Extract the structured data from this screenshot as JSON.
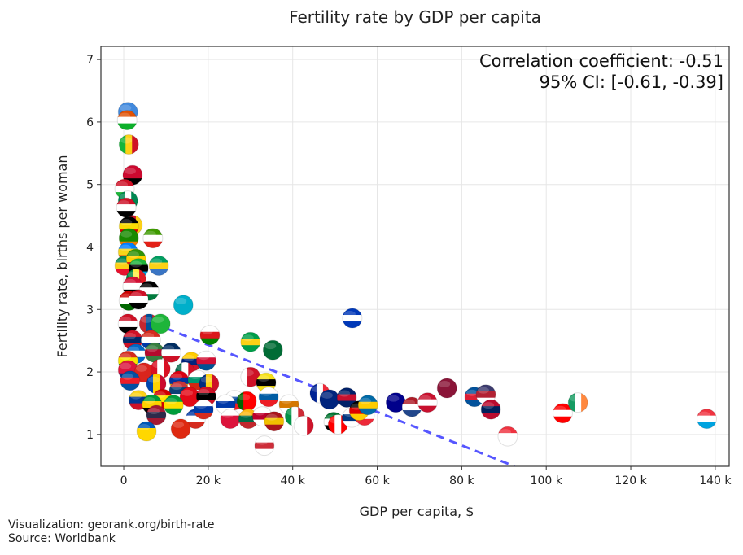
{
  "chart_data": {
    "type": "scatter",
    "title": "Fertility rate by GDP per capita",
    "xlabel": "GDP per capita, $",
    "ylabel": "Fertility rate, births per woman",
    "xlim": [
      -5.4,
      143.3
    ],
    "ylim": [
      0.49,
      7.21
    ],
    "x_unit": "thousand $",
    "xticks": [
      0,
      20,
      40,
      60,
      80,
      100,
      120,
      140
    ],
    "xtick_labels": [
      "0",
      "20 k",
      "40 k",
      "60 k",
      "80 k",
      "100 k",
      "120 k",
      "140 k"
    ],
    "yticks": [
      1,
      2,
      3,
      4,
      5,
      6,
      7
    ],
    "ytick_labels": [
      "1",
      "2",
      "3",
      "4",
      "5",
      "6",
      "7"
    ],
    "grid": true,
    "annotation": [
      "Correlation coefficient: -0.51",
      "95% CI: [-0.61, -0.39]"
    ],
    "trendline": {
      "x": [
        4,
        92.5
      ],
      "y": [
        2.86,
        0.49
      ],
      "color": "#4444ff",
      "style": "dashed"
    },
    "points": [
      {
        "c": "Somalia",
        "x": 1,
        "y": 6.16,
        "f": [
          "#4189dd",
          "#4189dd",
          "#4189dd"
        ]
      },
      {
        "c": "Niger",
        "x": 0.8,
        "y": 6.03,
        "f": [
          "#e05206",
          "#ffffff",
          "#0db02b"
        ]
      },
      {
        "c": "Mali",
        "x": 1.2,
        "y": 5.64,
        "f": [
          "#14b53a",
          "#fcd116",
          "#ce1126"
        ],
        "v": true
      },
      {
        "c": "Angola",
        "x": 2.1,
        "y": 5.15,
        "f": [
          "#cc092f",
          "#cc092f",
          "#000000"
        ]
      },
      {
        "c": "Burundi",
        "x": 0.2,
        "y": 4.93,
        "f": [
          "#ce1126",
          "#ffffff",
          "#1eb53a"
        ]
      },
      {
        "c": "Nigeria",
        "x": 1,
        "y": 4.74,
        "f": [
          "#008751",
          "#ffffff",
          "#008751"
        ],
        "v": true
      },
      {
        "c": "Yemen",
        "x": 0.6,
        "y": 4.63,
        "f": [
          "#ce1126",
          "#ffffff",
          "#000000"
        ]
      },
      {
        "c": "Cameroon",
        "x": 2.1,
        "y": 4.35,
        "f": [
          "#007a5e",
          "#ce1126",
          "#fcd116"
        ],
        "v": true
      },
      {
        "c": "Uganda",
        "x": 1.2,
        "y": 4.33,
        "f": [
          "#000000",
          "#fcdc04",
          "#d90000"
        ]
      },
      {
        "c": "Zambia",
        "x": 1.2,
        "y": 4.14,
        "f": [
          "#198a00",
          "#198a00",
          "#ef7d00"
        ]
      },
      {
        "c": "Equatorial Guinea",
        "x": 6.9,
        "y": 4.14,
        "f": [
          "#3e9a00",
          "#ffffff",
          "#e32118"
        ]
      },
      {
        "c": "DR Congo",
        "x": 1,
        "y": 3.92,
        "f": [
          "#007fff",
          "#f7d618",
          "#ce1021"
        ]
      },
      {
        "c": "Benin",
        "x": 0.2,
        "y": 3.7,
        "f": [
          "#008751",
          "#fcd116",
          "#e8112d"
        ]
      },
      {
        "c": "Zimbabwe",
        "x": 2.9,
        "y": 3.81,
        "f": [
          "#319208",
          "#ffd200",
          "#de2010"
        ]
      },
      {
        "c": "Tanzania",
        "x": 3.5,
        "y": 3.66,
        "f": [
          "#1eb53a",
          "#000000",
          "#00a3dd"
        ]
      },
      {
        "c": "Gabon",
        "x": 8.3,
        "y": 3.7,
        "f": [
          "#009e60",
          "#fcd116",
          "#3a75c4"
        ]
      },
      {
        "c": "Senegal",
        "x": 2.9,
        "y": 3.49,
        "f": [
          "#00853f",
          "#fdef42",
          "#e31b23"
        ],
        "v": true
      },
      {
        "c": "Sudan",
        "x": 2.1,
        "y": 3.37,
        "f": [
          "#d21034",
          "#ffffff",
          "#000000"
        ]
      },
      {
        "c": "Jordan",
        "x": 6,
        "y": 3.3,
        "f": [
          "#000000",
          "#ffffff",
          "#007a3d"
        ]
      },
      {
        "c": "Tajikistan",
        "x": 1.2,
        "y": 3.14,
        "f": [
          "#cc0000",
          "#ffffff",
          "#006600"
        ]
      },
      {
        "c": "Egypt",
        "x": 3.5,
        "y": 3.16,
        "f": [
          "#ce1126",
          "#ffffff",
          "#000000"
        ]
      },
      {
        "c": "Kazakhstan",
        "x": 14.1,
        "y": 3.07,
        "f": [
          "#00afca",
          "#00afca",
          "#00afca"
        ]
      },
      {
        "c": "Syria",
        "x": 1,
        "y": 2.77,
        "f": [
          "#ce1126",
          "#ffffff",
          "#000000"
        ]
      },
      {
        "c": "Mongolia",
        "x": 6,
        "y": 2.77,
        "f": [
          "#c4272f",
          "#015197",
          "#c4272f"
        ],
        "v": true
      },
      {
        "c": "Turkmenistan",
        "x": 8.7,
        "y": 2.77,
        "f": [
          "#1eb53a",
          "#1eb53a",
          "#1eb53a"
        ]
      },
      {
        "c": "Oman",
        "x": 20.4,
        "y": 2.59,
        "f": [
          "#ffffff",
          "#db161b",
          "#008000"
        ]
      },
      {
        "c": "Laos",
        "x": 2.1,
        "y": 2.51,
        "f": [
          "#ce1126",
          "#002868",
          "#ce1126"
        ]
      },
      {
        "c": "Paraguay",
        "x": 6.4,
        "y": 2.51,
        "f": [
          "#d52b1e",
          "#ffffff",
          "#0038a8"
        ]
      },
      {
        "c": "Guyana",
        "x": 30,
        "y": 2.48,
        "f": [
          "#009e49",
          "#fcd116",
          "#009e49"
        ]
      },
      {
        "c": "Saudi Arabia",
        "x": 35.3,
        "y": 2.35,
        "f": [
          "#006c35",
          "#006c35",
          "#006c35"
        ]
      },
      {
        "c": "Nicaragua",
        "x": 2.9,
        "y": 2.29,
        "f": [
          "#0067c6",
          "#ffffff",
          "#0067c6"
        ]
      },
      {
        "c": "Suriname",
        "x": 7.3,
        "y": 2.31,
        "f": [
          "#377e3f",
          "#b40a2d",
          "#377e3f"
        ]
      },
      {
        "c": "Dominican Republic",
        "x": 11.2,
        "y": 2.31,
        "f": [
          "#002d62",
          "#ffffff",
          "#ce1126"
        ]
      },
      {
        "c": "Bolivia",
        "x": 1,
        "y": 2.18,
        "f": [
          "#d52b1e",
          "#f9e300",
          "#007934"
        ]
      },
      {
        "c": "Venezuela",
        "x": 16,
        "y": 2.16,
        "f": [
          "#ffcc00",
          "#00247d",
          "#cf142b"
        ]
      },
      {
        "c": "Panama",
        "x": 19.5,
        "y": 2.18,
        "f": [
          "#ffffff",
          "#d21034",
          "#005293"
        ]
      },
      {
        "c": "Nepal",
        "x": 1,
        "y": 2.03,
        "f": [
          "#dc143c",
          "#dc143c",
          "#003893"
        ]
      },
      {
        "c": "Vietnam",
        "x": 4.8,
        "y": 1.99,
        "f": [
          "#da251d",
          "#da251d",
          "#da251d"
        ]
      },
      {
        "c": "Peru",
        "x": 8.7,
        "y": 2.05,
        "f": [
          "#d91023",
          "#ffffff",
          "#d91023"
        ],
        "v": true
      },
      {
        "c": "Mexico",
        "x": 14.5,
        "y": 2.0,
        "f": [
          "#006847",
          "#ffffff",
          "#ce1126"
        ],
        "v": true
      },
      {
        "c": "North Korea",
        "x": 1.5,
        "y": 1.86,
        "f": [
          "#024fa2",
          "#ed1c27",
          "#024fa2"
        ]
      },
      {
        "c": "Moldova",
        "x": 7.7,
        "y": 1.81,
        "f": [
          "#0046ae",
          "#ffd200",
          "#cc092f"
        ],
        "v": true
      },
      {
        "c": "Armenia",
        "x": 13.1,
        "y": 1.86,
        "f": [
          "#d90012",
          "#0033a0",
          "#f2a800"
        ]
      },
      {
        "c": "Bulgaria",
        "x": 17.5,
        "y": 1.87,
        "f": [
          "#ffffff",
          "#00966e",
          "#d62612"
        ]
      },
      {
        "c": "Romania",
        "x": 20.2,
        "y": 1.81,
        "f": [
          "#002b7f",
          "#fcd116",
          "#ce1126"
        ],
        "v": true
      },
      {
        "c": "Bahrain",
        "x": 30,
        "y": 1.92,
        "f": [
          "#ffffff",
          "#ce1126",
          "#ce1126"
        ],
        "v": true
      },
      {
        "c": "Brunei",
        "x": 33.7,
        "y": 1.83,
        "f": [
          "#f7e017",
          "#000000",
          "#f7e017"
        ]
      },
      {
        "c": "Serbia",
        "x": 13.1,
        "y": 1.7,
        "f": [
          "#c6363c",
          "#0c4076",
          "#ffffff"
        ]
      },
      {
        "c": "North Macedonia",
        "x": 9.2,
        "y": 1.57,
        "f": [
          "#d20000",
          "#ffe600",
          "#d20000"
        ]
      },
      {
        "c": "Turkey",
        "x": 15.6,
        "y": 1.6,
        "f": [
          "#e30a17",
          "#e30a17",
          "#e30a17"
        ]
      },
      {
        "c": "Trinidad and Tobago",
        "x": 19.5,
        "y": 1.61,
        "f": [
          "#ce1126",
          "#000000",
          "#ce1126"
        ]
      },
      {
        "c": "Colombia",
        "x": 3.5,
        "y": 1.55,
        "f": [
          "#fcd116",
          "#003893",
          "#ce1126"
        ]
      },
      {
        "c": "Slovakia",
        "x": 26.2,
        "y": 1.55,
        "f": [
          "#ffffff",
          "#0b4ea2",
          "#ee1c25"
        ]
      },
      {
        "c": "Portugal",
        "x": 29.1,
        "y": 1.53,
        "f": [
          "#006600",
          "#ff0000",
          "#ff0000"
        ],
        "v": true
      },
      {
        "c": "Slovenia",
        "x": 34.3,
        "y": 1.6,
        "f": [
          "#ffffff",
          "#005da4",
          "#ed1c24"
        ]
      },
      {
        "c": "Cyprus",
        "x": 39.1,
        "y": 1.48,
        "f": [
          "#ffffff",
          "#d57800",
          "#ffffff"
        ]
      },
      {
        "c": "Uruguay",
        "x": 24.1,
        "y": 1.48,
        "f": [
          "#ffffff",
          "#0038a8",
          "#ffffff"
        ]
      },
      {
        "c": "Jamaica",
        "x": 6.7,
        "y": 1.48,
        "f": [
          "#009b3a",
          "#fed100",
          "#000000"
        ]
      },
      {
        "c": "Brazil",
        "x": 11.8,
        "y": 1.47,
        "f": [
          "#009c3b",
          "#ffdf00",
          "#009c3b"
        ]
      },
      {
        "c": "Thailand",
        "x": 7.7,
        "y": 1.31,
        "f": [
          "#a51931",
          "#2d2a4a",
          "#a51931"
        ]
      },
      {
        "c": "Chile",
        "x": 17,
        "y": 1.25,
        "f": [
          "#0039a6",
          "#ffffff",
          "#d52b1e"
        ]
      },
      {
        "c": "Russia",
        "x": 18.9,
        "y": 1.4,
        "f": [
          "#ffffff",
          "#0039a6",
          "#d52b1e"
        ]
      },
      {
        "c": "Poland",
        "x": 25.2,
        "y": 1.25,
        "f": [
          "#ffffff",
          "#dc143c",
          "#dc143c"
        ]
      },
      {
        "c": "Lithuania",
        "x": 29.5,
        "y": 1.25,
        "f": [
          "#fdb913",
          "#006a44",
          "#c1272d"
        ]
      },
      {
        "c": "Japan",
        "x": 32.8,
        "y": 1.29,
        "f": [
          "#ffffff",
          "#bc002d",
          "#ffffff"
        ]
      },
      {
        "c": "Spain",
        "x": 35.6,
        "y": 1.21,
        "f": [
          "#aa151b",
          "#f1bf00",
          "#aa151b"
        ]
      },
      {
        "c": "Italy",
        "x": 40.5,
        "y": 1.29,
        "f": [
          "#009246",
          "#ffffff",
          "#ce2b37"
        ],
        "v": true
      },
      {
        "c": "Malta",
        "x": 42.6,
        "y": 1.14,
        "f": [
          "#ffffff",
          "#ffffff",
          "#cf142b"
        ],
        "v": true
      },
      {
        "c": "Ukraine",
        "x": 5.4,
        "y": 1.05,
        "f": [
          "#0057b7",
          "#ffd700",
          "#ffd700"
        ]
      },
      {
        "c": "China",
        "x": 13.5,
        "y": 1.09,
        "f": [
          "#de2910",
          "#de2910",
          "#de2910"
        ]
      },
      {
        "c": "South Korea",
        "x": 33.3,
        "y": 0.82,
        "f": [
          "#ffffff",
          "#cd2e3a",
          "#ffffff"
        ]
      },
      {
        "c": "Israel",
        "x": 54.1,
        "y": 2.86,
        "f": [
          "#0038b8",
          "#ffffff",
          "#0038b8"
        ]
      },
      {
        "c": "Qatar",
        "x": 76.5,
        "y": 1.74,
        "f": [
          "#8a1538",
          "#8a1538",
          "#8a1538"
        ]
      },
      {
        "c": "France",
        "x": 46.4,
        "y": 1.66,
        "f": [
          "#002395",
          "#ffffff",
          "#ed2939"
        ],
        "v": true
      },
      {
        "c": "New Zealand",
        "x": 48.7,
        "y": 1.56,
        "f": [
          "#00247d",
          "#00247d",
          "#00247d"
        ]
      },
      {
        "c": "United Kingdom",
        "x": 52.8,
        "y": 1.59,
        "f": [
          "#012169",
          "#c8102e",
          "#012169"
        ]
      },
      {
        "c": "UAE",
        "x": 49.7,
        "y": 1.2,
        "f": [
          "#00732f",
          "#ffffff",
          "#000000"
        ]
      },
      {
        "c": "Canada",
        "x": 50.7,
        "y": 1.16,
        "f": [
          "#ff0000",
          "#ffffff",
          "#ff0000"
        ],
        "v": true
      },
      {
        "c": "Finland",
        "x": 54,
        "y": 1.27,
        "f": [
          "#ffffff",
          "#003580",
          "#ffffff"
        ]
      },
      {
        "c": "Austria",
        "x": 57,
        "y": 1.3,
        "f": [
          "#ed2939",
          "#ffffff",
          "#ed2939"
        ]
      },
      {
        "c": "Germany",
        "x": 55.7,
        "y": 1.38,
        "f": [
          "#000000",
          "#dd0000",
          "#ffce00"
        ]
      },
      {
        "c": "Sweden",
        "x": 57.8,
        "y": 1.47,
        "f": [
          "#006aa7",
          "#fecc00",
          "#006aa7"
        ]
      },
      {
        "c": "Australia",
        "x": 64.4,
        "y": 1.51,
        "f": [
          "#00008b",
          "#00008b",
          "#00008b"
        ]
      },
      {
        "c": "Netherlands",
        "x": 68.2,
        "y": 1.44,
        "f": [
          "#ae1c28",
          "#ffffff",
          "#21468b"
        ]
      },
      {
        "c": "Denmark",
        "x": 71.9,
        "y": 1.51,
        "f": [
          "#c8102e",
          "#ffffff",
          "#c8102e"
        ]
      },
      {
        "c": "Iceland",
        "x": 83,
        "y": 1.6,
        "f": [
          "#02529c",
          "#dc1e35",
          "#02529c"
        ]
      },
      {
        "c": "United States",
        "x": 85.7,
        "y": 1.64,
        "f": [
          "#3c3b6e",
          "#b22234",
          "#ffffff"
        ]
      },
      {
        "c": "Norway",
        "x": 86.9,
        "y": 1.4,
        "f": [
          "#ba0c2f",
          "#00205b",
          "#ba0c2f"
        ]
      },
      {
        "c": "Singapore",
        "x": 90.9,
        "y": 0.97,
        "f": [
          "#ef3340",
          "#ffffff",
          "#ffffff"
        ]
      },
      {
        "c": "Switzerland",
        "x": 103.9,
        "y": 1.34,
        "f": [
          "#ff0000",
          "#ffffff",
          "#ff0000"
        ]
      },
      {
        "c": "Ireland",
        "x": 107.5,
        "y": 1.51,
        "f": [
          "#169b62",
          "#ffffff",
          "#ff883e"
        ],
        "v": true
      },
      {
        "c": "Luxembourg",
        "x": 138,
        "y": 1.25,
        "f": [
          "#ef3340",
          "#ffffff",
          "#00a3e0"
        ]
      }
    ]
  },
  "footer": {
    "visualization": "Visualization: georank.org/birth-rate",
    "source": "Source: Worldbank"
  }
}
